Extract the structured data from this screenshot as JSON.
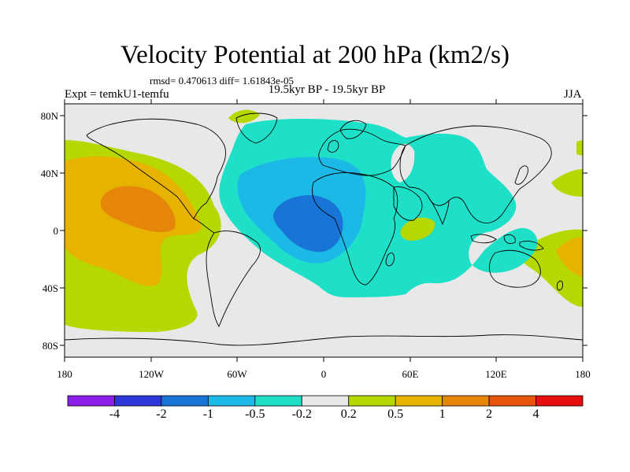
{
  "header": {
    "title": "Velocity Potential at 200 hPa (km2/s)",
    "stats": "rmsd= 0.470613 diff= 1.61843e-05",
    "experiment": "Expt = temkU1-temfu",
    "period": "19.5kyr BP - 19.5kyr BP",
    "season": "JJA"
  },
  "axes": {
    "lat_labels": [
      "80N",
      "40N",
      "0",
      "40S",
      "80S"
    ],
    "lon_labels": [
      "180",
      "120W",
      "60W",
      "0",
      "60E",
      "120E",
      "180"
    ]
  },
  "colorbar": {
    "colors": [
      "#8a1ee6",
      "#2e36d8",
      "#1874d6",
      "#1cb9e6",
      "#1ee0c8",
      "#e8e8e8",
      "#b6d800",
      "#e6b400",
      "#e6870c",
      "#e6540c",
      "#e60e0e"
    ],
    "labels": [
      "-4",
      "-2",
      "-1",
      "-0.5",
      "-0.2",
      "0.2",
      "0.5",
      "1",
      "2",
      "4"
    ]
  },
  "map": {
    "colors": {
      "background": "#e8e8e8",
      "green": "#b6d800",
      "yellow": "#e6b400",
      "orange": "#e6870c",
      "cyan": "#1ee0c8",
      "lightblue": "#1cb9e6",
      "blue": "#1874d6",
      "coast": "#000000"
    }
  }
}
